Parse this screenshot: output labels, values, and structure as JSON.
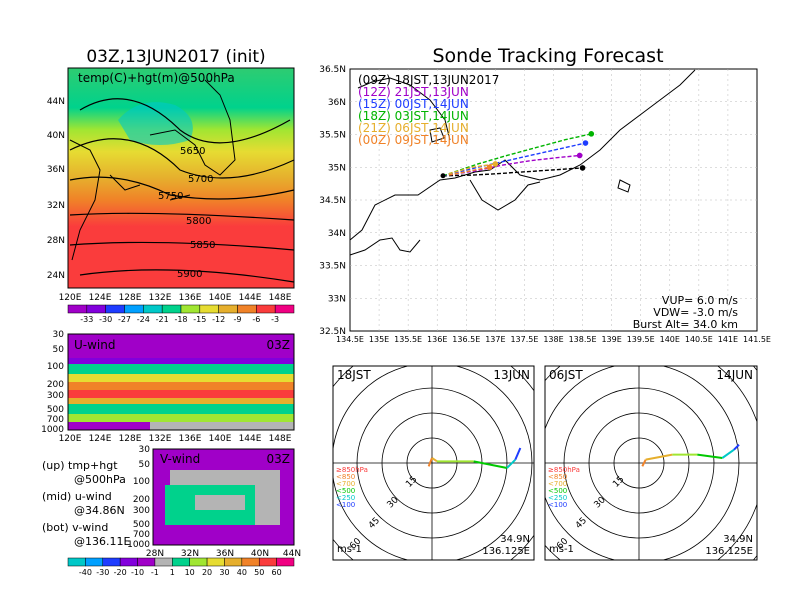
{
  "main_title": "Sonde Tracking Forecast",
  "left_title": "03Z,13JUN2017 (init)",
  "map_panel": {
    "label": "temp(C)+hgt(m)@500hPa",
    "lat_ticks": [
      "44N",
      "40N",
      "36N",
      "32N",
      "28N",
      "24N"
    ],
    "lon_ticks": [
      "120E",
      "124E",
      "128E",
      "132E",
      "136E",
      "140E",
      "144E",
      "148E"
    ],
    "contour_labels": [
      "5650",
      "5700",
      "5750",
      "5800",
      "5850",
      "5900"
    ]
  },
  "temp_colorbar": {
    "labels": [
      "-33",
      "-30",
      "-27",
      "-24",
      "-21",
      "-18",
      "-15",
      "-12",
      "-9",
      "-6",
      "-3"
    ],
    "colors": [
      "#a000c8",
      "#8200dc",
      "#1e3cff",
      "#00a0ff",
      "#00c8c8",
      "#00d28c",
      "#a0e632",
      "#e6dc32",
      "#e6af2d",
      "#f08228",
      "#fa3c3c",
      "#f00082"
    ]
  },
  "uwind_panel": {
    "label": "U-wind",
    "time": "03Z",
    "p_ticks": [
      "30",
      "50",
      "100",
      "200",
      "300",
      "500",
      "700",
      "1000"
    ],
    "lon_ticks": [
      "120E",
      "124E",
      "128E",
      "132E",
      "136E",
      "140E",
      "144E",
      "148E"
    ]
  },
  "vwind_panel": {
    "label": "V-wind",
    "time": "03Z",
    "p_ticks": [
      "30",
      "50",
      "100",
      "200",
      "300",
      "500",
      "700",
      "1000"
    ],
    "lat_ticks": [
      "28N",
      "32N",
      "36N",
      "40N",
      "44N"
    ]
  },
  "notes": [
    {
      "a": "(up)  tmp+hgt",
      "b": "@500hPa"
    },
    {
      "a": "(mid)  u-wind",
      "b": "@34.86N"
    },
    {
      "a": "(bot)  v-wind",
      "b": "@136.11E"
    }
  ],
  "wind_colorbar": {
    "labels": [
      "-40",
      "-30",
      "-20",
      "-10",
      "-1",
      "1",
      "10",
      "20",
      "30",
      "40",
      "50",
      "60"
    ],
    "colors": [
      "#00c8c8",
      "#00a0ff",
      "#1e3cff",
      "#8200dc",
      "#a000c8",
      "#b4b4b4",
      "#00d28c",
      "#a0e632",
      "#e6dc32",
      "#e6af2d",
      "#f08228",
      "#fa3c3c",
      "#f00082"
    ]
  },
  "legend": [
    {
      "text": "(09Z)  18JST,13JUN2017",
      "color": "#000000"
    },
    {
      "text": "(12Z)  21JST,13JUN",
      "color": "#a000c8"
    },
    {
      "text": "(15Z)  00JST,14JUN",
      "color": "#1e3cff"
    },
    {
      "text": "(18Z)  03JST,14JUN",
      "color": "#00b400"
    },
    {
      "text": "(21Z)  06JST,14JUN",
      "color": "#e6af2d"
    },
    {
      "text": "(00Z)  09JST,14JUN",
      "color": "#f08228"
    }
  ],
  "stats": {
    "vup": "VUP= 6.0 m/s",
    "vdw": "VDW= -3.0 m/s",
    "burst": "Burst Alt= 34.0 km"
  },
  "hodo_left": {
    "time": "18JST",
    "date": "13JUN",
    "lat": "34.9N",
    "lon": "136.125E",
    "unit": "ms-1"
  },
  "hodo_right": {
    "time": "06JST",
    "date": "14JUN",
    "lat": "34.9N",
    "lon": "136.125E",
    "unit": "ms-1"
  },
  "hodo_ring_labels": [
    "15",
    "30",
    "45",
    "60"
  ],
  "hodo_levels": [
    {
      "text": "≥850hPa",
      "color": "#fa3c3c"
    },
    {
      "text": "<850",
      "color": "#f08228"
    },
    {
      "text": "<700",
      "color": "#e6af2d"
    },
    {
      "text": "<500",
      "color": "#00c800"
    },
    {
      "text": "<250",
      "color": "#00c8c8"
    },
    {
      "text": "<100",
      "color": "#1e3cff"
    }
  ],
  "chart_data": [
    {
      "type": "line",
      "title": "Sonde Tracking Forecast",
      "xlabel": "",
      "ylabel": "",
      "xlim": [
        134.5,
        141.5
      ],
      "ylim": [
        32.5,
        36.5
      ],
      "x_ticks": [
        "134.5E",
        "135E",
        "135.5E",
        "136E",
        "136.5E",
        "137E",
        "137.5E",
        "138E",
        "138.5E",
        "139E",
        "139.5E",
        "140E",
        "140.5E",
        "141E",
        "141.5E"
      ],
      "y_ticks": [
        "32.5N",
        "33N",
        "33.5N",
        "34N",
        "34.5N",
        "35N",
        "35.5N",
        "36N",
        "36.5N"
      ],
      "series": [
        {
          "name": "(09Z)  18JST,13JUN2017",
          "color": "#000000",
          "x": [
            136.1,
            136.6,
            137.0,
            137.5,
            138.0,
            138.5
          ],
          "y": [
            34.87,
            34.88,
            34.9,
            34.93,
            34.96,
            34.99
          ]
        },
        {
          "name": "(12Z)  21JST,13JUN",
          "color": "#a000c8",
          "x": [
            136.1,
            136.7,
            137.1,
            137.6,
            138.1,
            138.45
          ],
          "y": [
            34.87,
            34.95,
            35.03,
            35.1,
            35.15,
            35.18
          ]
        },
        {
          "name": "(15Z)  00JST,14JUN",
          "color": "#1e3cff",
          "x": [
            136.1,
            136.7,
            137.2,
            137.7,
            138.2,
            138.55
          ],
          "y": [
            34.87,
            35.0,
            35.1,
            35.2,
            35.3,
            35.37
          ]
        },
        {
          "name": "(18Z)  03JST,14JUN",
          "color": "#00b400",
          "x": [
            136.1,
            136.7,
            137.2,
            137.7,
            138.2,
            138.65
          ],
          "y": [
            34.87,
            35.05,
            35.18,
            35.3,
            35.42,
            35.51
          ]
        },
        {
          "name": "(21Z)  06JST,14JUN",
          "color": "#e6af2d",
          "x": [
            136.2,
            136.6,
            137.0
          ],
          "y": [
            34.9,
            35.0,
            35.05
          ]
        },
        {
          "name": "(00Z)  09JST,14JUN",
          "color": "#f08228",
          "x": [
            136.2,
            136.6,
            136.9
          ],
          "y": [
            34.88,
            34.95,
            35.0
          ]
        }
      ]
    },
    {
      "type": "heatmap",
      "title": "temp(C)+hgt(m)@500hPa",
      "xlim": [
        120,
        150
      ],
      "ylim": [
        22,
        48
      ],
      "contours": [
        5650,
        5700,
        5750,
        5800,
        5850,
        5900
      ]
    },
    {
      "type": "heatmap",
      "title": "U-wind",
      "xlim": [
        120,
        150
      ],
      "ylim": [
        1000,
        30
      ]
    },
    {
      "type": "heatmap",
      "title": "V-wind",
      "xlim": [
        28,
        44
      ],
      "ylim": [
        1000,
        30
      ]
    },
    {
      "type": "line",
      "title": "18JST 13JUN",
      "ring_labels": [
        "15",
        "30",
        "45",
        "60"
      ],
      "u": [
        -2,
        0,
        3,
        25,
        45,
        50,
        53
      ],
      "v": [
        -2,
        3,
        1,
        1,
        -3,
        2,
        9
      ]
    },
    {
      "type": "line",
      "title": "06JST 14JUN",
      "u": [
        2,
        4,
        20,
        35,
        50,
        57,
        60
      ],
      "v": [
        -2,
        2,
        5,
        5,
        3,
        8,
        11
      ]
    }
  ]
}
